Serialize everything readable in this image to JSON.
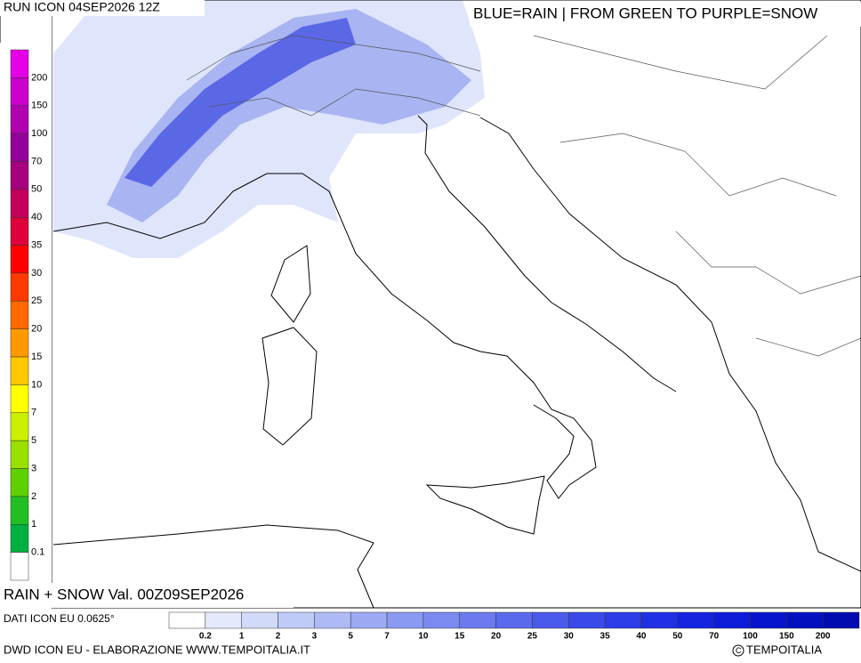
{
  "header": {
    "run": "RUN ICON 04SEP2026 12Z",
    "legend_note": "BLUE=RAIN | FROM GREEN TO PURPLE=SNOW"
  },
  "snow_legend": {
    "labels": [
      "200",
      "150",
      "100",
      "70",
      "50",
      "40",
      "35",
      "30",
      "25",
      "20",
      "15",
      "10",
      "7",
      "5",
      "3",
      "2",
      "1",
      "0.1"
    ],
    "colors": [
      "#e600e6",
      "#cc00cc",
      "#b000b0",
      "#96009a",
      "#a8007c",
      "#c4005c",
      "#e0003a",
      "#ff0000",
      "#ff3a00",
      "#ff6a00",
      "#ff9900",
      "#ffc800",
      "#ffff00",
      "#ccf000",
      "#99e000",
      "#5fd000",
      "#22bf22",
      "#00b040",
      "#ffffff"
    ]
  },
  "valid": "RAIN + SNOW Val. 00Z09SEP2026",
  "data_source": "DATI ICON EU 0.0625°",
  "rain_legend": {
    "labels": [
      "0.2",
      "1",
      "2",
      "3",
      "5",
      "7",
      "10",
      "15",
      "20",
      "25",
      "30",
      "35",
      "40",
      "50",
      "70",
      "100",
      "150",
      "200"
    ],
    "colors": [
      "#ffffff",
      "#e4eafc",
      "#d2dafa",
      "#c0caf8",
      "#aebaf6",
      "#9caaf4",
      "#8a9af2",
      "#7a8af0",
      "#6a7aee",
      "#5a6aec",
      "#4a5aea",
      "#3a4ae8",
      "#2c3ce6",
      "#2030e4",
      "#1424e0",
      "#0c1cd8",
      "#0614cc",
      "#0210c0",
      "#000cb0"
    ]
  },
  "footer": {
    "credit": "DWD ICON EU - ELABORAZIONE WWW.TEMPOITALIA.IT",
    "copyright": "TEMPOITALIA"
  }
}
